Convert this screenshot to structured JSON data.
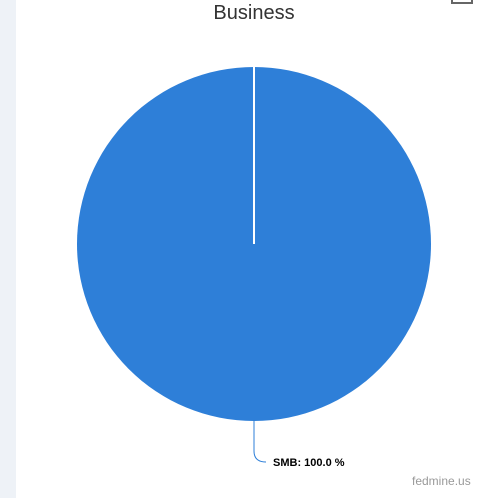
{
  "chart_data": {
    "type": "pie",
    "title": "Business",
    "categories": [
      "SMB"
    ],
    "values": [
      100.0
    ],
    "data_labels": [
      "SMB: 100.0 %"
    ],
    "colors": [
      "#2e7fd8"
    ]
  },
  "credit": "fedmine.us",
  "icons": {
    "menu": "menu-icon"
  }
}
